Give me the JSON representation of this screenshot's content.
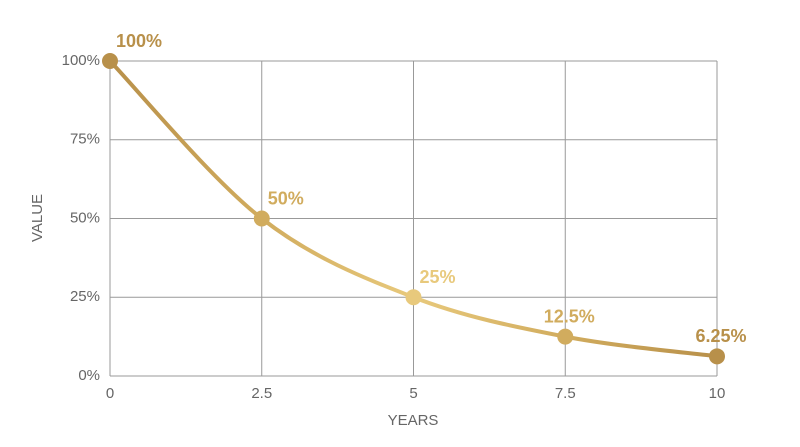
{
  "chart_data": {
    "type": "line",
    "x_label": "YEARS",
    "y_label": "VALUE",
    "x": [
      0,
      2.5,
      5,
      7.5,
      10
    ],
    "series": [
      {
        "values": [
          100,
          50,
          25,
          12.5,
          6.25
        ],
        "value_labels": [
          "100%",
          "50%",
          "25%",
          "12.5%",
          "6.25%"
        ],
        "colors": [
          "#b8904a",
          "#d1ac5e",
          "#e8c97c",
          "#d1ac5e",
          "#b8904a"
        ]
      }
    ],
    "xlim": [
      0,
      10
    ],
    "ylim": [
      0,
      100
    ],
    "xticks": [
      0,
      2.5,
      5,
      7.5,
      10
    ],
    "yticks": [
      {
        "value": 0,
        "label": "0%"
      },
      {
        "value": 25,
        "label": "25%"
      },
      {
        "value": 50,
        "label": "50%"
      },
      {
        "value": 75,
        "label": "75%"
      },
      {
        "value": 100,
        "label": "100%"
      }
    ],
    "grid": true
  }
}
